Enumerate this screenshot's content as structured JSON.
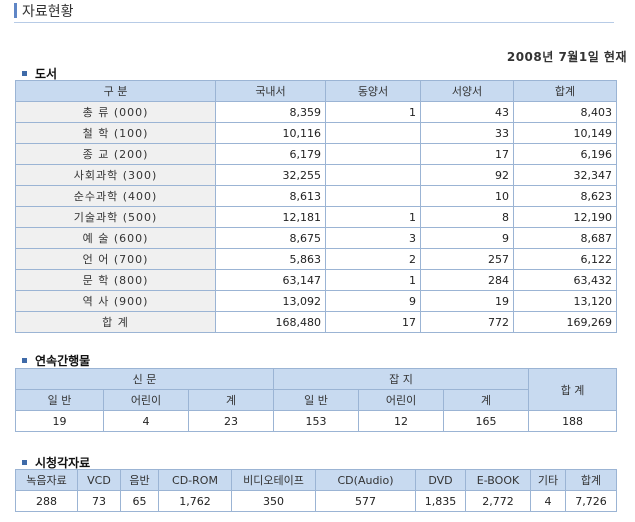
{
  "page_title": "자료현황",
  "date": "2008년 7월1일 현재",
  "books": {
    "section_title": "도서",
    "headers": [
      "구 분",
      "국내서",
      "동양서",
      "서양서",
      "합계"
    ],
    "rows": [
      [
        "총 류 (000)",
        "8,359",
        "1",
        "43",
        "8,403"
      ],
      [
        "철 학 (100)",
        "10,116",
        "",
        "33",
        "10,149"
      ],
      [
        "종 교 (200)",
        "6,179",
        "",
        "17",
        "6,196"
      ],
      [
        "사회과학 (300)",
        "32,255",
        "",
        "92",
        "32,347"
      ],
      [
        "순수과학 (400)",
        "8,613",
        "",
        "10",
        "8,623"
      ],
      [
        "기술과학 (500)",
        "12,181",
        "1",
        "8",
        "12,190"
      ],
      [
        "예 술 (600)",
        "8,675",
        "3",
        "9",
        "8,687"
      ],
      [
        "언 어 (700)",
        "5,863",
        "2",
        "257",
        "6,122"
      ],
      [
        "문 학 (800)",
        "63,147",
        "1",
        "284",
        "63,432"
      ],
      [
        "역 사 (900)",
        "13,092",
        "9",
        "19",
        "13,120"
      ],
      [
        "합 계",
        "168,480",
        "17",
        "772",
        "169,269"
      ]
    ]
  },
  "serials": {
    "section_title": "연속간행물",
    "group_newspaper": "신 문",
    "group_magazine": "잡 지",
    "total_label": "합 계",
    "sub_headers": [
      "일 반",
      "어린이",
      "계",
      "일 반",
      "어린이",
      "계"
    ],
    "values": [
      "19",
      "4",
      "23",
      "153",
      "12",
      "165",
      "188"
    ]
  },
  "av": {
    "section_title": "시청각자료",
    "headers": [
      "녹음자료",
      "VCD",
      "음반",
      "CD-ROM",
      "비디오테이프",
      "CD(Audio)",
      "DVD",
      "E-BOOK",
      "기타",
      "합계"
    ],
    "values": [
      "288",
      "73",
      "65",
      "1,762",
      "350",
      "577",
      "1,835",
      "2,772",
      "4",
      "7,726"
    ]
  }
}
